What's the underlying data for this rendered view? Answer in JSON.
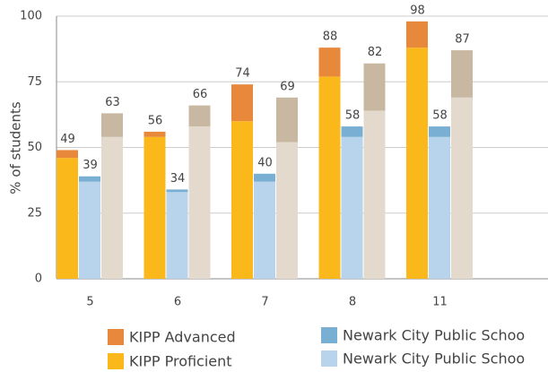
{
  "chart_data": {
    "type": "stacked_grouped_bar",
    "ylabel": "% of students",
    "categories": [
      "5",
      "6",
      "7",
      "8",
      "11"
    ],
    "ylim": [
      0,
      100
    ],
    "yticks": [
      0,
      25,
      50,
      75,
      100
    ],
    "grid": true,
    "series": [
      {
        "name": "KIPP Advanced",
        "color": "#e8883a",
        "stack": 0,
        "values": [
          3,
          2,
          14,
          11,
          10
        ]
      },
      {
        "name": "KIPP Proficient",
        "color": "#fbb81a",
        "stack": 0,
        "values": [
          46,
          54,
          60,
          77,
          88
        ]
      },
      {
        "name": "Newark City Public Schoo",
        "color": "#7aafd4",
        "stack": 1,
        "values": [
          2,
          1,
          3,
          4,
          4
        ]
      },
      {
        "name": "Newark City Public Schoo",
        "color": "#b8d3ec",
        "stack": 1,
        "values": [
          37,
          33,
          37,
          54,
          54
        ]
      },
      {
        "color": "#c8b8a2",
        "stack": 2,
        "values": [
          9,
          8,
          17,
          18,
          18
        ]
      },
      {
        "color": "#e4d9cd",
        "stack": 2,
        "values": [
          54,
          58,
          52,
          64,
          69
        ]
      }
    ],
    "stack_totals": [
      [
        49,
        56,
        74,
        88,
        98
      ],
      [
        39,
        34,
        40,
        58,
        58
      ],
      [
        63,
        66,
        69,
        82,
        87
      ]
    ]
  }
}
